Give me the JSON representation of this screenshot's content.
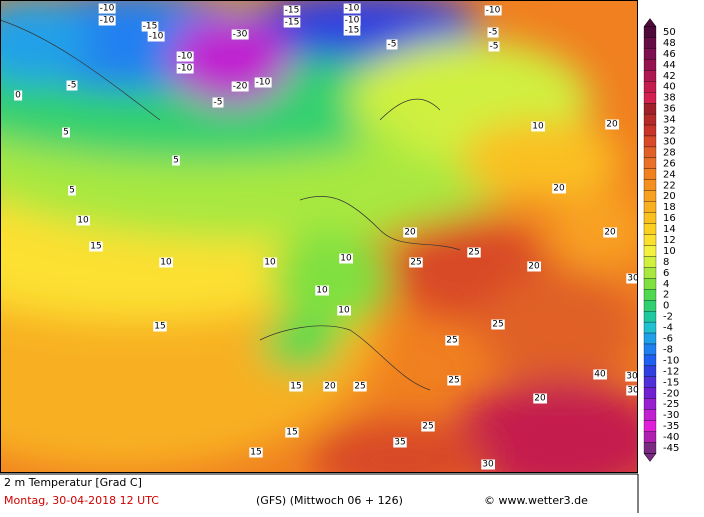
{
  "footer": {
    "variable": "2 m Temperatur [Grad C]",
    "date": "Montag, 30-04-2018  12 UTC",
    "model": "(GFS)  (Mittwoch 06 + 126)",
    "credit": "© www.wetter3.de"
  },
  "legend": {
    "levels": [
      50,
      48,
      46,
      44,
      42,
      40,
      38,
      36,
      34,
      32,
      30,
      28,
      26,
      24,
      22,
      20,
      18,
      16,
      14,
      12,
      10,
      8,
      6,
      4,
      2,
      0,
      -2,
      -4,
      -6,
      -8,
      -10,
      -12,
      -15,
      -20,
      -25,
      -30,
      -35,
      -40,
      -45
    ],
    "colors": [
      "#4d0a3a",
      "#650d45",
      "#7d1050",
      "#951450",
      "#ad1850",
      "#c41c4e",
      "#d42050",
      "#a0202a",
      "#b42a28",
      "#c83428",
      "#d84a28",
      "#e06028",
      "#e87028",
      "#f08020",
      "#f49020",
      "#f8a020",
      "#f8b020",
      "#fac020",
      "#fcd020",
      "#fce030",
      "#f4f040",
      "#d0f040",
      "#a8e840",
      "#80e040",
      "#50d850",
      "#30d070",
      "#20c8a0",
      "#20c0d0",
      "#20a0e8",
      "#2080f0",
      "#2060f0",
      "#3040e0",
      "#5030d8",
      "#7020d0",
      "#9820d0",
      "#c020d0",
      "#e020d8",
      "#b020b0",
      "#7a2a80"
    ]
  },
  "map_labels": [
    -10,
    -10,
    -15,
    -10,
    -30,
    -10,
    -10,
    -15,
    -15,
    -10,
    -10,
    -15,
    -10,
    -5,
    -5,
    -5,
    -20,
    -10,
    -5,
    -5,
    0,
    5,
    5,
    5,
    10,
    15,
    10,
    15,
    10,
    10,
    10,
    10,
    25,
    25,
    20,
    20,
    20,
    10,
    20,
    25,
    25,
    20,
    40,
    30,
    30,
    35,
    30,
    25,
    15,
    15,
    15,
    20,
    25,
    25,
    20,
    30
  ]
}
